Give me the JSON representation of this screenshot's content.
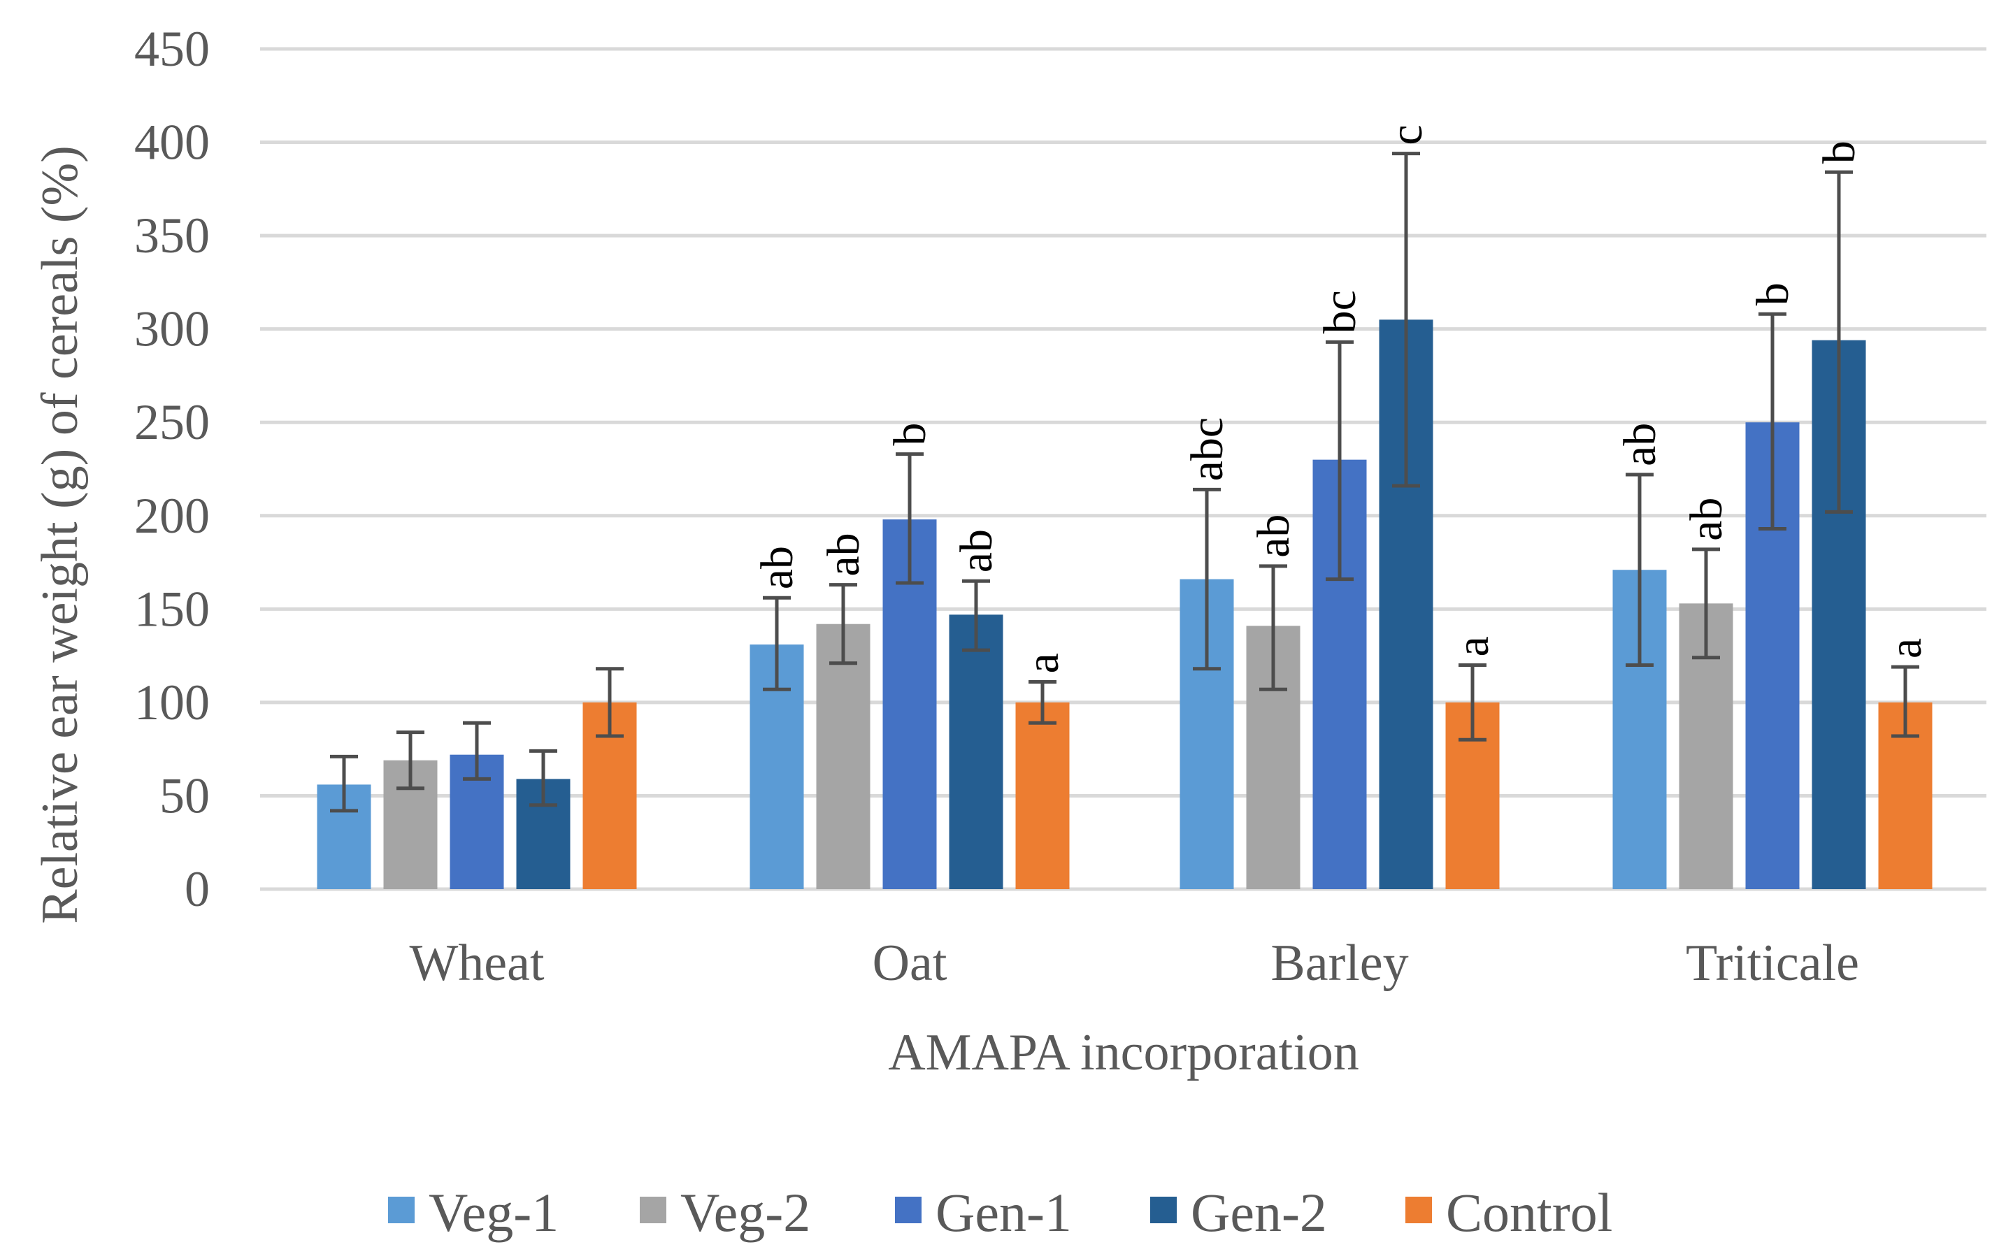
{
  "chart_data": {
    "type": "bar",
    "title": "",
    "xlabel": "AMAPA incorporation",
    "ylabel": "Relative ear weight (g) of cereals (%)",
    "ylim": [
      0,
      450
    ],
    "yticks": [
      0,
      50,
      100,
      150,
      200,
      250,
      300,
      350,
      400,
      450
    ],
    "grid": true,
    "legend_position": "bottom",
    "categories": [
      "Wheat",
      "Oat",
      "Barley",
      "Triticale"
    ],
    "series": [
      {
        "name": "Veg-1",
        "color": "#5B9BD5",
        "values": [
          56,
          131,
          166,
          171
        ],
        "err_low": [
          42,
          107,
          118,
          120
        ],
        "err_high": [
          71,
          156,
          214,
          222
        ],
        "letters": [
          "",
          "ab",
          "abc",
          "ab"
        ]
      },
      {
        "name": "Veg-2",
        "color": "#A5A5A5",
        "values": [
          69,
          142,
          141,
          153
        ],
        "err_low": [
          54,
          121,
          107,
          124
        ],
        "err_high": [
          84,
          163,
          173,
          182
        ],
        "letters": [
          "",
          "ab",
          "ab",
          "ab"
        ]
      },
      {
        "name": "Gen-1",
        "color": "#4472C4",
        "values": [
          72,
          198,
          230,
          250
        ],
        "err_low": [
          59,
          164,
          166,
          193
        ],
        "err_high": [
          89,
          233,
          293,
          308
        ],
        "letters": [
          "",
          "b",
          "bc",
          "b"
        ]
      },
      {
        "name": "Gen-2",
        "color": "#255E91",
        "values": [
          59,
          147,
          305,
          294
        ],
        "err_low": [
          45,
          128,
          216,
          202
        ],
        "err_high": [
          74,
          165,
          394,
          384
        ],
        "letters": [
          "",
          "ab",
          "c",
          "b"
        ]
      },
      {
        "name": "Control",
        "color": "#ED7D31",
        "values": [
          100,
          100,
          100,
          100
        ],
        "err_low": [
          82,
          89,
          80,
          82
        ],
        "err_high": [
          118,
          111,
          120,
          119
        ],
        "letters": [
          "",
          "a",
          "a",
          "a"
        ]
      }
    ]
  }
}
